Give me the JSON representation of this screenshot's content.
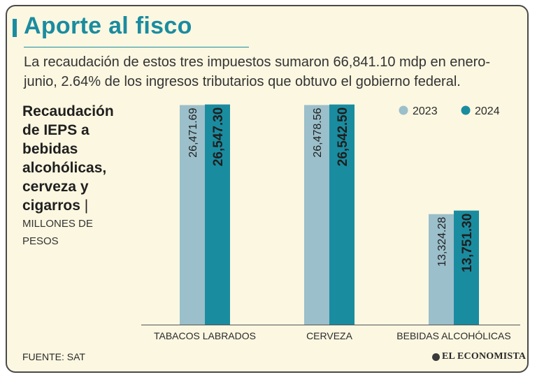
{
  "title": "Aporte al fisco",
  "subtitle": "La recaudación de estos tres impuestos sumaron 66,841.10 mdp en enero-junio, 2.64% de los ingresos tributarios que obtuvo el gobierno federal.",
  "side_title": "Recaudación de IEPS a bebidas alcohólicas, cerveza y cigarros",
  "side_separator": "|",
  "side_units": "MILLONES DE PESOS",
  "source": "FUENTE: SAT",
  "logo_text": "EL ECONOMISTA",
  "colors": {
    "series_2023": "#9bbfcb",
    "series_2024": "#1a8ca0",
    "title": "#1a8ca0",
    "background": "#fcf7e1"
  },
  "chart_data": {
    "type": "bar",
    "categories": [
      "TABACOS LABRADOS",
      "CERVEZA",
      "BEBIDAS ALCOHÓLICAS"
    ],
    "series": [
      {
        "name": "2023",
        "values": [
          26471.69,
          26478.56,
          13324.28
        ],
        "labels": [
          "26,471.69",
          "26,478.56",
          "13,324.28"
        ]
      },
      {
        "name": "2024",
        "values": [
          26547.3,
          26542.5,
          13751.3
        ],
        "labels": [
          "26,547.30",
          "26,542.50",
          "13,751.30"
        ]
      }
    ],
    "ylim": [
      0,
      26600
    ],
    "legend_position": "top-right",
    "grid": false
  }
}
